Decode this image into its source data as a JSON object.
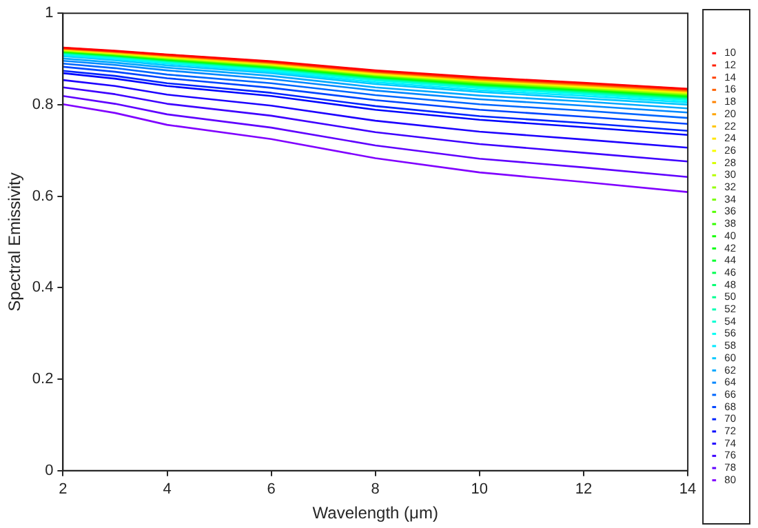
{
  "chart_data": {
    "type": "line",
    "xlabel": "Wavelength (μm)",
    "ylabel": "Spectral Emissivity",
    "x": [
      2,
      3,
      4,
      6,
      8,
      10,
      12,
      14
    ],
    "xlim": [
      2,
      14
    ],
    "xticks": [
      2,
      4,
      6,
      8,
      10,
      12,
      14
    ],
    "ylim": [
      0,
      1
    ],
    "yticks": [
      0,
      0.2,
      0.4,
      0.6,
      0.8,
      1
    ],
    "grid": false,
    "legend": "right",
    "marker": "none",
    "line_style": "solid",
    "series": [
      {
        "name": "10",
        "color": "#ff0000",
        "values": [
          0.925,
          0.918,
          0.91,
          0.895,
          0.875,
          0.86,
          0.848,
          0.835
        ]
      },
      {
        "name": "12",
        "color": "#ff2100",
        "values": [
          0.924,
          0.917,
          0.909,
          0.894,
          0.874,
          0.859,
          0.847,
          0.834
        ]
      },
      {
        "name": "14",
        "color": "#ff4200",
        "values": [
          0.924,
          0.917,
          0.909,
          0.893,
          0.873,
          0.858,
          0.846,
          0.833
        ]
      },
      {
        "name": "16",
        "color": "#ff6200",
        "values": [
          0.923,
          0.916,
          0.908,
          0.893,
          0.872,
          0.857,
          0.845,
          0.832
        ]
      },
      {
        "name": "18",
        "color": "#ff8300",
        "values": [
          0.923,
          0.916,
          0.907,
          0.892,
          0.872,
          0.856,
          0.844,
          0.831
        ]
      },
      {
        "name": "20",
        "color": "#ffa400",
        "values": [
          0.922,
          0.915,
          0.907,
          0.891,
          0.871,
          0.855,
          0.843,
          0.83
        ]
      },
      {
        "name": "22",
        "color": "#ffc500",
        "values": [
          0.922,
          0.914,
          0.906,
          0.89,
          0.87,
          0.854,
          0.842,
          0.829
        ]
      },
      {
        "name": "24",
        "color": "#ffe600",
        "values": [
          0.921,
          0.914,
          0.905,
          0.89,
          0.869,
          0.854,
          0.841,
          0.828
        ]
      },
      {
        "name": "26",
        "color": "#f8ff00",
        "values": [
          0.921,
          0.913,
          0.905,
          0.889,
          0.868,
          0.853,
          0.84,
          0.827
        ]
      },
      {
        "name": "28",
        "color": "#d7ff00",
        "values": [
          0.92,
          0.913,
          0.904,
          0.888,
          0.867,
          0.852,
          0.839,
          0.826
        ]
      },
      {
        "name": "30",
        "color": "#b6ff00",
        "values": [
          0.919,
          0.912,
          0.903,
          0.887,
          0.866,
          0.851,
          0.838,
          0.825
        ]
      },
      {
        "name": "32",
        "color": "#95ff00",
        "values": [
          0.919,
          0.911,
          0.902,
          0.887,
          0.866,
          0.85,
          0.837,
          0.824
        ]
      },
      {
        "name": "34",
        "color": "#75ff00",
        "values": [
          0.918,
          0.911,
          0.902,
          0.886,
          0.865,
          0.849,
          0.836,
          0.823
        ]
      },
      {
        "name": "36",
        "color": "#54ff00",
        "values": [
          0.918,
          0.91,
          0.901,
          0.885,
          0.864,
          0.848,
          0.835,
          0.822
        ]
      },
      {
        "name": "38",
        "color": "#33ff00",
        "values": [
          0.917,
          0.91,
          0.9,
          0.884,
          0.863,
          0.847,
          0.835,
          0.821
        ]
      },
      {
        "name": "40",
        "color": "#12ff00",
        "values": [
          0.917,
          0.909,
          0.9,
          0.884,
          0.862,
          0.846,
          0.834,
          0.82
        ]
      },
      {
        "name": "42",
        "color": "#00ff0f",
        "values": [
          0.916,
          0.908,
          0.899,
          0.883,
          0.861,
          0.845,
          0.833,
          0.819
        ]
      },
      {
        "name": "44",
        "color": "#00ff2f",
        "values": [
          0.916,
          0.908,
          0.898,
          0.882,
          0.861,
          0.844,
          0.832,
          0.818
        ]
      },
      {
        "name": "46",
        "color": "#00ff50",
        "values": [
          0.915,
          0.907,
          0.898,
          0.881,
          0.86,
          0.843,
          0.831,
          0.817
        ]
      },
      {
        "name": "48",
        "color": "#00ff71",
        "values": [
          0.915,
          0.907,
          0.897,
          0.881,
          0.859,
          0.843,
          0.83,
          0.816
        ]
      },
      {
        "name": "50",
        "color": "#00ff92",
        "values": [
          0.914,
          0.906,
          0.896,
          0.88,
          0.858,
          0.842,
          0.829,
          0.815
        ]
      },
      {
        "name": "52",
        "color": "#00ffb3",
        "values": [
          0.913,
          0.905,
          0.896,
          0.879,
          0.857,
          0.841,
          0.828,
          0.814
        ]
      },
      {
        "name": "54",
        "color": "#00ffd3",
        "values": [
          0.912,
          0.904,
          0.894,
          0.878,
          0.855,
          0.839,
          0.826,
          0.812
        ]
      },
      {
        "name": "56",
        "color": "#00fff4",
        "values": [
          0.911,
          0.902,
          0.892,
          0.875,
          0.853,
          0.836,
          0.823,
          0.809
        ]
      },
      {
        "name": "58",
        "color": "#00e9ff",
        "values": [
          0.908,
          0.9,
          0.89,
          0.872,
          0.849,
          0.832,
          0.819,
          0.805
        ]
      },
      {
        "name": "60",
        "color": "#00c8ff",
        "values": [
          0.906,
          0.897,
          0.886,
          0.869,
          0.845,
          0.828,
          0.814,
          0.8
        ]
      },
      {
        "name": "62",
        "color": "#00a8ff",
        "values": [
          0.901,
          0.892,
          0.881,
          0.863,
          0.838,
          0.82,
          0.807,
          0.792
        ]
      },
      {
        "name": "64",
        "color": "#0087ff",
        "values": [
          0.896,
          0.887,
          0.875,
          0.856,
          0.831,
          0.812,
          0.798,
          0.783
        ]
      },
      {
        "name": "66",
        "color": "#0066ff",
        "values": [
          0.89,
          0.88,
          0.866,
          0.847,
          0.821,
          0.801,
          0.787,
          0.771
        ]
      },
      {
        "name": "68",
        "color": "#0045ff",
        "values": [
          0.883,
          0.872,
          0.858,
          0.837,
          0.81,
          0.789,
          0.774,
          0.758
        ]
      },
      {
        "name": "70",
        "color": "#0024ff",
        "values": [
          0.874,
          0.863,
          0.847,
          0.826,
          0.797,
          0.775,
          0.76,
          0.743
        ]
      },
      {
        "name": "72",
        "color": "#0004ff",
        "values": [
          0.869,
          0.857,
          0.841,
          0.819,
          0.789,
          0.767,
          0.751,
          0.734
        ]
      },
      {
        "name": "74",
        "color": "#1d00ff",
        "values": [
          0.854,
          0.841,
          0.822,
          0.798,
          0.765,
          0.741,
          0.724,
          0.706
        ]
      },
      {
        "name": "76",
        "color": "#3e00ff",
        "values": [
          0.838,
          0.823,
          0.802,
          0.776,
          0.74,
          0.714,
          0.695,
          0.676
        ]
      },
      {
        "name": "78",
        "color": "#5f00ff",
        "values": [
          0.819,
          0.802,
          0.779,
          0.75,
          0.711,
          0.682,
          0.663,
          0.642
        ]
      },
      {
        "name": "80",
        "color": "#8000ff",
        "values": [
          0.801,
          0.782,
          0.756,
          0.725,
          0.683,
          0.652,
          0.631,
          0.609
        ]
      }
    ]
  }
}
